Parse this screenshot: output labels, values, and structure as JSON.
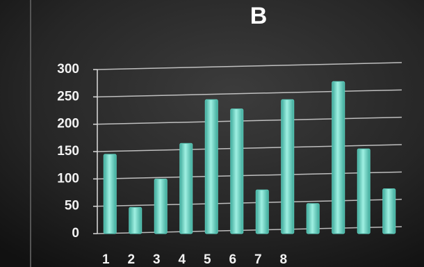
{
  "chart_data": {
    "type": "bar",
    "title": "B",
    "categories": [
      "1",
      "2",
      "3",
      "4",
      "5",
      "6",
      "7",
      "8",
      null,
      null,
      null,
      null
    ],
    "values": [
      145,
      48,
      100,
      165,
      245,
      228,
      80,
      245,
      55,
      278,
      155,
      82
    ],
    "color": "#5cc9b9",
    "ylim": [
      0,
      300
    ],
    "yticks": [
      0,
      50,
      100,
      150,
      200,
      250,
      300
    ],
    "grid": true
  }
}
